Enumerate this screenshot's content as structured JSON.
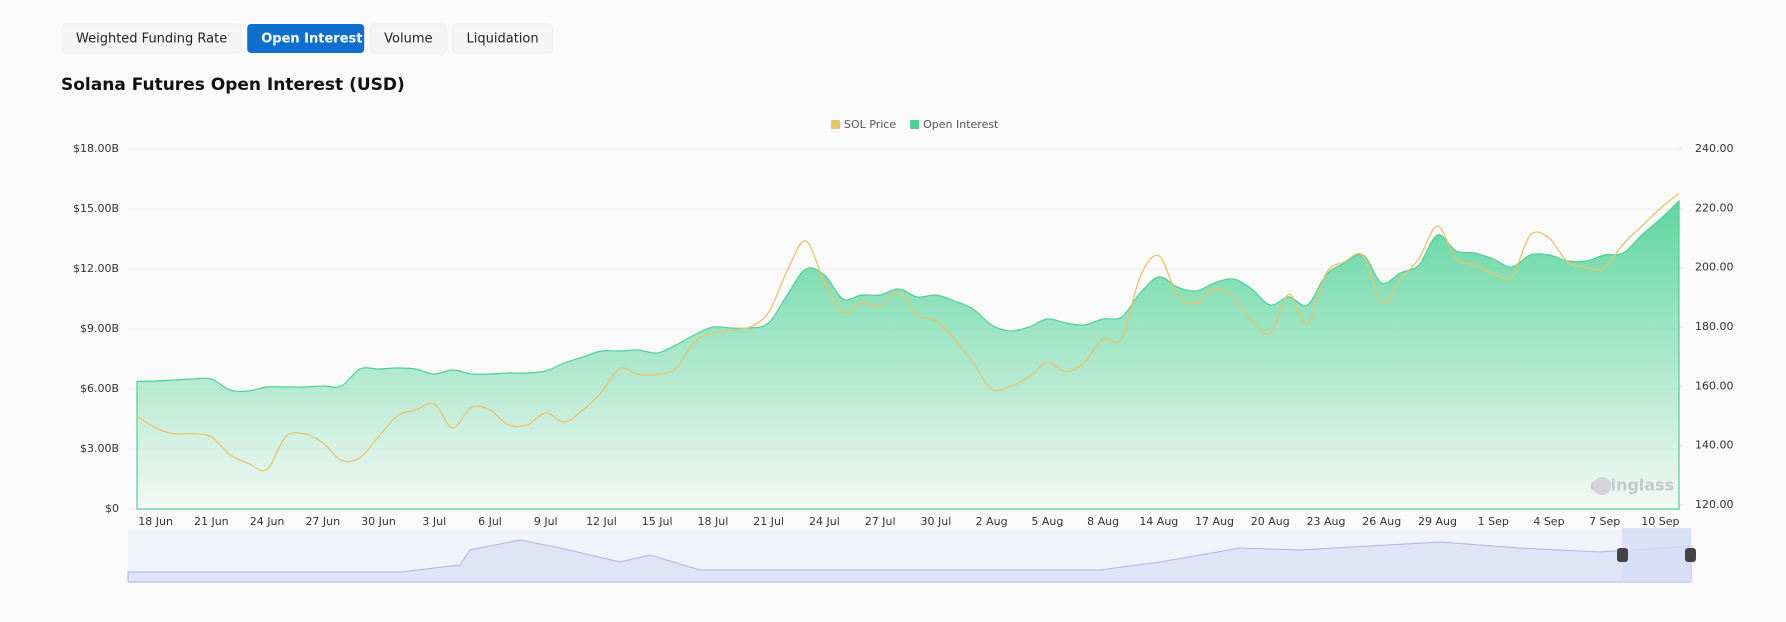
{
  "tabs": [
    {
      "label": "Weighted Funding Rate",
      "active": false
    },
    {
      "label": "Open Interest",
      "active": true
    },
    {
      "label": "Volume",
      "active": false
    },
    {
      "label": "Liquidation",
      "active": false
    }
  ],
  "chart_data": {
    "type": "area",
    "title": "Solana Futures Open Interest (USD)",
    "watermark": "coinglass",
    "grid": true,
    "legend": "top",
    "categories": [
      null,
      "18 Jun",
      null,
      null,
      "21 Jun",
      null,
      null,
      "24 Jun",
      null,
      null,
      "27 Jun",
      null,
      null,
      "30 Jun",
      null,
      null,
      "3 Jul",
      null,
      null,
      "6 Jul",
      null,
      null,
      "9 Jul",
      null,
      null,
      "12 Jul",
      null,
      null,
      "15 Jul",
      null,
      null,
      "18 Jul",
      null,
      null,
      "21 Jul",
      null,
      null,
      "24 Jul",
      null,
      null,
      "27 Jul",
      null,
      null,
      "30 Jul",
      null,
      null,
      "2 Aug",
      null,
      null,
      "5 Aug",
      null,
      null,
      "8 Aug",
      null,
      null,
      "14 Aug",
      null,
      null,
      "17 Aug",
      null,
      null,
      "20 Aug",
      null,
      null,
      "23 Aug",
      null,
      null,
      "26 Aug",
      null,
      null,
      "29 Aug",
      null,
      null,
      "1 Sep",
      null,
      null,
      "4 Sep",
      null,
      null,
      "7 Sep",
      null,
      null,
      "10 Sep",
      null
    ],
    "series": [
      {
        "name": "SOL Price",
        "type": "line",
        "axis": "y2",
        "color": "#e8c468",
        "values": [
          150,
          146,
          144,
          144,
          143,
          137,
          134,
          132,
          143,
          144,
          141,
          135,
          136,
          143,
          150,
          152,
          154,
          146,
          153,
          152,
          147,
          147,
          151,
          148,
          152,
          158,
          166,
          164,
          164,
          166,
          175,
          178,
          179,
          180,
          185,
          199,
          209,
          195,
          185,
          188,
          187,
          192,
          184,
          182,
          176,
          168,
          159,
          160,
          163,
          168,
          165,
          168,
          176,
          176,
          197,
          204,
          191,
          188,
          193,
          190,
          182,
          178,
          191,
          181,
          198,
          202,
          204,
          188,
          196,
          203,
          214,
          203,
          201,
          198,
          197,
          211,
          210,
          202,
          200,
          200,
          208,
          214,
          220,
          225
        ]
      },
      {
        "name": "Open Interest",
        "type": "area",
        "color": "#4dd295",
        "values": [
          6.38,
          6.4,
          6.45,
          6.5,
          6.5,
          5.95,
          5.9,
          6.1,
          6.1,
          6.1,
          6.15,
          6.15,
          7.0,
          7.0,
          7.05,
          7.0,
          6.75,
          6.95,
          6.75,
          6.75,
          6.8,
          6.8,
          6.9,
          7.3,
          7.6,
          7.9,
          7.9,
          7.95,
          7.8,
          8.2,
          8.7,
          9.1,
          9.05,
          9.05,
          9.3,
          10.7,
          12.0,
          11.7,
          10.5,
          10.7,
          10.7,
          11.0,
          10.6,
          10.7,
          10.4,
          10.0,
          9.2,
          8.9,
          9.1,
          9.5,
          9.3,
          9.2,
          9.5,
          9.6,
          10.8,
          11.6,
          11.1,
          10.9,
          11.3,
          11.5,
          11.0,
          10.2,
          10.6,
          10.2,
          11.7,
          12.3,
          12.7,
          11.3,
          11.8,
          12.2,
          13.7,
          12.9,
          12.8,
          12.5,
          12.1,
          12.7,
          12.7,
          12.4,
          12.4,
          12.7,
          12.8,
          13.7,
          14.5,
          15.4
        ]
      }
    ],
    "ylim": [
      0,
      18
    ],
    "yticks": [
      {
        "value": 0,
        "label": "$0"
      },
      {
        "value": 3,
        "label": "$3.00B"
      },
      {
        "value": 6,
        "label": "$6.00B"
      },
      {
        "value": 9,
        "label": "$9.00B"
      },
      {
        "value": 12,
        "label": "$12.00B"
      },
      {
        "value": 15,
        "label": "$15.00B"
      },
      {
        "value": 18,
        "label": "$18.00B"
      }
    ],
    "y2lim": [
      120,
      240
    ],
    "y2ticks": [
      {
        "value": 120,
        "label": "120.00"
      },
      {
        "value": 140,
        "label": "140.00"
      },
      {
        "value": 160,
        "label": "160.00"
      },
      {
        "value": 180,
        "label": "180.00"
      },
      {
        "value": 200,
        "label": "200.00"
      },
      {
        "value": 220,
        "label": "220.00"
      },
      {
        "value": 240,
        "label": "240.00"
      }
    ]
  }
}
